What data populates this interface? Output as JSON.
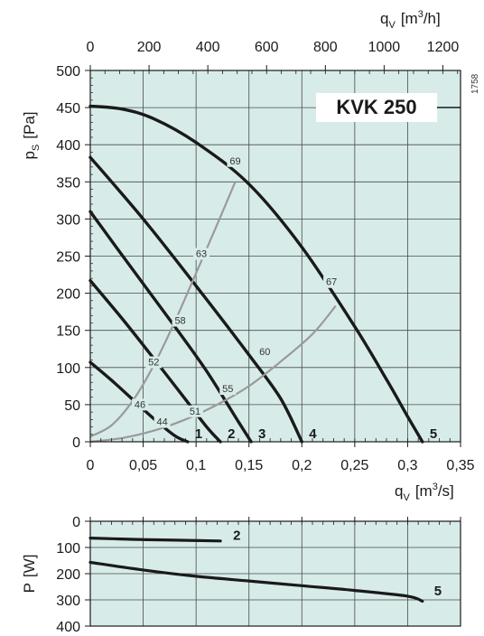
{
  "chart_data": [
    {
      "type": "line",
      "title": "KVK 250",
      "side_code": "1758",
      "colors": {
        "background": "#d7ece9",
        "grid": "#4a4a4a",
        "fan_curve": "#1a1a1a",
        "system_curve": "#9a9a9a",
        "box_fill": "#ffffff"
      },
      "xlabel": "qV [m3/s]",
      "xlabel_parts": {
        "main": "q",
        "sub": "V",
        "unit_open": "[m",
        "unit_sup": "3",
        "unit_close": "/s]"
      },
      "x2label_parts": {
        "main": "q",
        "sub": "V",
        "unit_open": "[m",
        "unit_sup": "3",
        "unit_close": "/h]"
      },
      "ylabel_parts": {
        "main": "p",
        "sub": "S",
        "unit": "[Pa]"
      },
      "xlim": [
        0,
        0.35
      ],
      "ylim": [
        0,
        500
      ],
      "x_ticks": [
        0,
        0.05,
        0.1,
        0.15,
        0.2,
        0.25,
        0.3,
        0.35
      ],
      "x_tick_labels": [
        "0",
        "0,05",
        "0,1",
        "0,15",
        "0,2",
        "0,25",
        "0,3",
        "0,35"
      ],
      "x2_ticks": [
        0,
        200,
        400,
        600,
        800,
        1000,
        1200
      ],
      "x2_tick_labels": [
        "0",
        "200",
        "400",
        "600",
        "800",
        "1000",
        "1200"
      ],
      "x2_factor": 3600,
      "y_ticks": [
        0,
        50,
        100,
        150,
        200,
        250,
        300,
        350,
        400,
        450,
        500
      ],
      "y_tick_labels": [
        "0",
        "50",
        "100",
        "150",
        "200",
        "250",
        "300",
        "350",
        "400",
        "450",
        "500"
      ],
      "grid": true,
      "series": [
        {
          "name": "1",
          "kind": "fan",
          "x": [
            0,
            0.02,
            0.04,
            0.06,
            0.08,
            0.092
          ],
          "y": [
            107,
            83,
            57,
            31,
            8,
            0
          ]
        },
        {
          "name": "2",
          "kind": "fan",
          "x": [
            0,
            0.03,
            0.06,
            0.09,
            0.11,
            0.123
          ],
          "y": [
            217,
            166,
            112,
            57,
            20,
            0
          ]
        },
        {
          "name": "3",
          "kind": "fan",
          "x": [
            0,
            0.04,
            0.08,
            0.11,
            0.14,
            0.152
          ],
          "y": [
            310,
            232,
            155,
            95,
            27,
            0
          ]
        },
        {
          "name": "4",
          "kind": "fan",
          "x": [
            0,
            0.05,
            0.1,
            0.15,
            0.18,
            0.2
          ],
          "y": [
            383,
            300,
            210,
            117,
            58,
            0
          ]
        },
        {
          "name": "5",
          "kind": "fan",
          "x": [
            0,
            0.03,
            0.06,
            0.1,
            0.15,
            0.2,
            0.25,
            0.28,
            0.3,
            0.314
          ],
          "y": [
            452,
            448,
            435,
            403,
            347,
            262,
            155,
            84,
            34,
            0
          ]
        },
        {
          "name": "",
          "kind": "system",
          "x": [
            0,
            0.02,
            0.04,
            0.06,
            0.08,
            0.1,
            0.12,
            0.137
          ],
          "y": [
            7,
            22,
            55,
            103,
            162,
            227,
            293,
            350
          ]
        },
        {
          "name": "",
          "kind": "system",
          "x": [
            0,
            0.03,
            0.06,
            0.09,
            0.12,
            0.15,
            0.18,
            0.21,
            0.232
          ],
          "y": [
            0,
            5,
            15,
            30,
            50,
            75,
            108,
            145,
            183
          ]
        }
      ],
      "curve_labels": [
        {
          "text": "1",
          "x": 0.092,
          "y": 0
        },
        {
          "text": "2",
          "x": 0.123,
          "y": 0
        },
        {
          "text": "3",
          "x": 0.152,
          "y": 0
        },
        {
          "text": "4",
          "x": 0.2,
          "y": 0
        },
        {
          "text": "5",
          "x": 0.314,
          "y": 0
        }
      ],
      "annotations": [
        {
          "text": "44",
          "x": 0.068,
          "y": 24
        },
        {
          "text": "46",
          "x": 0.047,
          "y": 47
        },
        {
          "text": "51",
          "x": 0.099,
          "y": 38
        },
        {
          "text": "52",
          "x": 0.06,
          "y": 104
        },
        {
          "text": "55",
          "x": 0.13,
          "y": 68
        },
        {
          "text": "58",
          "x": 0.085,
          "y": 160
        },
        {
          "text": "60",
          "x": 0.165,
          "y": 118
        },
        {
          "text": "63",
          "x": 0.105,
          "y": 250
        },
        {
          "text": "67",
          "x": 0.228,
          "y": 212
        },
        {
          "text": "69",
          "x": 0.137,
          "y": 375
        }
      ]
    },
    {
      "type": "line",
      "xlim": [
        0,
        0.35
      ],
      "ylim": [
        0,
        400
      ],
      "ylabel_parts": {
        "main": "P",
        "unit": "[W]"
      },
      "y_inverted": true,
      "y_ticks": [
        0,
        100,
        200,
        300,
        400
      ],
      "y_tick_labels": [
        "0",
        "100",
        "200",
        "300",
        "400"
      ],
      "grid": true,
      "series": [
        {
          "name": "2",
          "x": [
            0,
            0.04,
            0.08,
            0.123
          ],
          "y": [
            64,
            69,
            72,
            75
          ]
        },
        {
          "name": "5",
          "x": [
            0,
            0.05,
            0.1,
            0.15,
            0.2,
            0.25,
            0.3,
            0.314
          ],
          "y": [
            157,
            186,
            210,
            228,
            246,
            264,
            286,
            305
          ]
        }
      ],
      "curve_labels": [
        {
          "text": "2",
          "x": 0.135,
          "y": 54
        },
        {
          "text": "5",
          "x": 0.325,
          "y": 266
        }
      ]
    }
  ]
}
